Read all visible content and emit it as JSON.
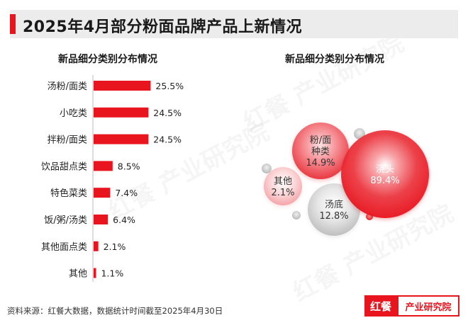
{
  "header": {
    "title": "2025年4月部分粉面品牌产品上新情况"
  },
  "left_chart_title": "新品细分类别分布情况",
  "right_chart_title": "新品细分类别分布情况",
  "source_note": "资料来源：红餐大数据，数据统计时间截至2025年4月30日",
  "brand": {
    "logo_text": "红餐",
    "name": "产业研究院"
  },
  "watermark_text": "红餐 产业研究院",
  "colors": {
    "accent": "#e8141e",
    "bubble_gray": "#c8c8c8"
  },
  "chart_data": [
    {
      "type": "bar",
      "orientation": "horizontal",
      "title": "新品细分类别分布情况",
      "categories": [
        "汤粉/面类",
        "小吃类",
        "拌粉/面类",
        "饮品甜点类",
        "特色菜类",
        "饭/粥/汤类",
        "其他面点类",
        "其他"
      ],
      "values": [
        25.5,
        24.5,
        24.5,
        8.5,
        7.4,
        6.4,
        2.1,
        1.1
      ],
      "value_labels": [
        "25.5%",
        "24.5%",
        "24.5%",
        "8.5%",
        "7.4%",
        "6.4%",
        "2.1%",
        "1.1%"
      ],
      "xlim": [
        0,
        26
      ],
      "grid": false
    },
    {
      "type": "bubble",
      "title": "新品细分类别分布情况",
      "bubbles": [
        {
          "lines": [
            "浇头",
            "89.4%"
          ],
          "value": 89.4,
          "style": "red"
        },
        {
          "lines": [
            "粉/面",
            "种类",
            "14.9%"
          ],
          "value": 14.9,
          "style": "red"
        },
        {
          "lines": [
            "汤底",
            "12.8%"
          ],
          "value": 12.8,
          "style": "gray"
        },
        {
          "lines": [
            "其他",
            "2.1%"
          ],
          "value": 2.1,
          "style": "pink"
        }
      ]
    }
  ]
}
